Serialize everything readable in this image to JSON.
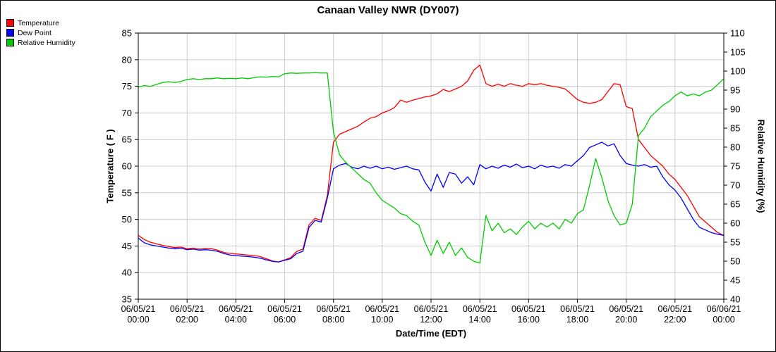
{
  "chart_data": {
    "type": "line",
    "title": "Canaan Valley NWR (DY007)",
    "xlabel": "Date/Time (EDT)",
    "ylabel_left": "Temperature ( F )",
    "ylabel_right": "Relative Humidity (%)",
    "grid": true,
    "legend_position": "top-left",
    "ylim_left": [
      35,
      85
    ],
    "ylim_right": [
      40,
      110
    ],
    "y_ticks_left": [
      35,
      40,
      45,
      50,
      55,
      60,
      65,
      70,
      75,
      80,
      85
    ],
    "y_ticks_right": [
      40,
      45,
      50,
      55,
      60,
      65,
      70,
      75,
      80,
      85,
      90,
      95,
      100,
      105,
      110
    ],
    "x_range_hours": [
      0,
      24
    ],
    "x_start_hour": 0,
    "x_step_hours": 0.25,
    "x_ticks": [
      {
        "hour": 0,
        "date": "06/05/21",
        "time": "00:00"
      },
      {
        "hour": 2,
        "date": "06/05/21",
        "time": "02:00"
      },
      {
        "hour": 4,
        "date": "06/05/21",
        "time": "04:00"
      },
      {
        "hour": 6,
        "date": "06/05/21",
        "time": "06:00"
      },
      {
        "hour": 8,
        "date": "06/05/21",
        "time": "08:00"
      },
      {
        "hour": 10,
        "date": "06/05/21",
        "time": "10:00"
      },
      {
        "hour": 12,
        "date": "06/05/21",
        "time": "12:00"
      },
      {
        "hour": 14,
        "date": "06/05/21",
        "time": "14:00"
      },
      {
        "hour": 16,
        "date": "06/05/21",
        "time": "16:00"
      },
      {
        "hour": 18,
        "date": "06/05/21",
        "time": "18:00"
      },
      {
        "hour": 20,
        "date": "06/05/21",
        "time": "20:00"
      },
      {
        "hour": 22,
        "date": "06/05/21",
        "time": "22:00"
      },
      {
        "hour": 24,
        "date": "06/06/21",
        "time": "00:00"
      }
    ],
    "series": [
      {
        "name": "Temperature",
        "axis": "left",
        "unit": "F",
        "color": "#ff0000",
        "values": [
          47.0,
          46.2,
          45.7,
          45.4,
          45.1,
          44.9,
          44.7,
          44.8,
          44.5,
          44.6,
          44.4,
          44.5,
          44.5,
          44.2,
          43.8,
          43.6,
          43.5,
          43.4,
          43.3,
          43.2,
          43.0,
          42.6,
          42.2,
          42.0,
          42.4,
          42.8,
          44.0,
          44.4,
          49.0,
          50.2,
          49.8,
          54.5,
          64.5,
          66.0,
          66.5,
          67.0,
          67.5,
          68.3,
          69.0,
          69.3,
          70.0,
          70.4,
          71.0,
          72.4,
          72.0,
          72.4,
          72.7,
          73.0,
          73.2,
          73.6,
          74.4,
          74.0,
          74.5,
          75.0,
          76.0,
          78.0,
          79.0,
          75.5,
          75.0,
          75.4,
          75.0,
          75.5,
          75.2,
          75.0,
          75.5,
          75.3,
          75.5,
          75.2,
          75.0,
          74.8,
          74.5,
          73.5,
          72.5,
          72.0,
          71.8,
          72.0,
          72.5,
          74.0,
          75.5,
          75.3,
          71.2,
          70.8,
          65.0,
          63.5,
          62.0,
          61.0,
          60.0,
          58.5,
          57.5,
          56.0,
          54.5,
          52.5,
          50.5,
          49.5,
          48.5,
          47.5,
          47.0
        ]
      },
      {
        "name": "Dew Point",
        "axis": "left",
        "unit": "F",
        "color": "#0000ff",
        "values": [
          46.5,
          45.6,
          45.2,
          45.0,
          44.8,
          44.6,
          44.5,
          44.6,
          44.3,
          44.4,
          44.2,
          44.3,
          44.2,
          44.0,
          43.6,
          43.3,
          43.2,
          43.1,
          43.0,
          42.9,
          42.7,
          42.4,
          42.1,
          42.0,
          42.3,
          42.6,
          43.6,
          44.0,
          48.5,
          49.8,
          49.5,
          54.0,
          59.5,
          60.2,
          60.5,
          59.8,
          59.5,
          60.0,
          59.6,
          60.0,
          59.5,
          59.8,
          59.4,
          59.7,
          60.0,
          59.5,
          59.3,
          57.0,
          55.3,
          58.5,
          56.0,
          58.8,
          58.5,
          56.8,
          58.0,
          56.5,
          60.3,
          59.5,
          60.0,
          59.6,
          60.2,
          59.8,
          60.4,
          59.7,
          60.0,
          59.5,
          60.2,
          59.8,
          60.0,
          59.6,
          60.3,
          60.0,
          61.0,
          62.0,
          63.5,
          64.0,
          64.5,
          63.8,
          64.2,
          62.0,
          60.5,
          60.2,
          60.0,
          60.3,
          59.8,
          60.0,
          58.0,
          56.5,
          55.5,
          54.0,
          52.0,
          50.0,
          48.5,
          48.0,
          47.5,
          47.2,
          47.0
        ]
      },
      {
        "name": "Relative Humidity",
        "axis": "right",
        "unit": "%",
        "color": "#00cc00",
        "values": [
          95.8,
          96.2,
          96.0,
          96.5,
          97.0,
          97.2,
          97.0,
          97.3,
          97.8,
          98.0,
          97.8,
          98.0,
          98.0,
          98.2,
          98.0,
          98.1,
          98.0,
          98.2,
          98.0,
          98.3,
          98.5,
          98.4,
          98.6,
          98.5,
          99.3,
          99.5,
          99.4,
          99.5,
          99.5,
          99.6,
          99.5,
          99.5,
          84.0,
          78.0,
          76.0,
          74.5,
          73.0,
          71.5,
          70.5,
          68.0,
          66.0,
          65.0,
          64.0,
          62.5,
          62.0,
          60.5,
          59.5,
          55.0,
          51.5,
          55.5,
          52.0,
          55.0,
          51.5,
          53.5,
          51.0,
          50.0,
          49.5,
          62.0,
          58.0,
          60.0,
          57.5,
          58.5,
          57.0,
          59.0,
          60.5,
          58.5,
          60.0,
          59.0,
          60.0,
          58.5,
          61.0,
          60.0,
          62.5,
          63.5,
          70.0,
          77.0,
          72.0,
          66.0,
          62.0,
          59.5,
          60.0,
          65.0,
          83.0,
          85.0,
          88.0,
          89.5,
          91.0,
          92.0,
          93.5,
          94.5,
          93.5,
          94.0,
          93.5,
          94.5,
          95.0,
          96.5,
          98.0
        ]
      }
    ],
    "colors": {
      "grid": "#cccccc",
      "axis": "#000000",
      "background": "#ffffff"
    }
  }
}
